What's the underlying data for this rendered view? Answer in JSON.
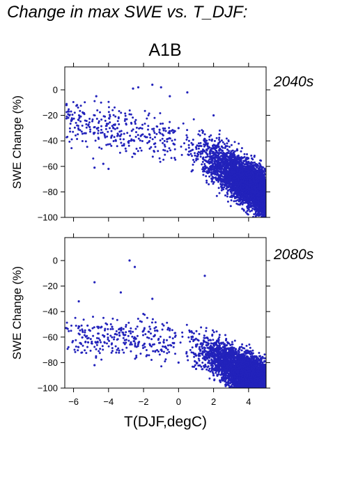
{
  "title": "Change in max SWE vs. T_DJF:",
  "scenario": "A1B",
  "colors": {
    "points": "#2222bb",
    "period_text": "#2222aa",
    "axis": "#000000"
  },
  "chart_data": [
    {
      "type": "scatter",
      "panel": "2040s",
      "period_label": "2040s",
      "ylabel": "SWE Change (%)",
      "xlabel": "",
      "xlim": [
        -6.5,
        5
      ],
      "ylim": [
        -100,
        18
      ],
      "yticks": [
        0,
        -20,
        -40,
        -60,
        -80,
        -100
      ],
      "xticks": [
        -6,
        -4,
        -2,
        0,
        2,
        4
      ],
      "xtick_labels_shown": false,
      "grid": false,
      "n_points_approx": 4000,
      "points_sample": [
        [
          -6.4,
          -12
        ],
        [
          -5.8,
          -12
        ],
        [
          -5.3,
          -34
        ],
        [
          -4.7,
          -5
        ],
        [
          -4.8,
          -61
        ],
        [
          -4.3,
          -58
        ],
        [
          -4.0,
          -62
        ],
        [
          -3.5,
          -30
        ],
        [
          -3.0,
          -48
        ],
        [
          -2.6,
          1
        ],
        [
          -2.3,
          2
        ],
        [
          -1.5,
          4
        ],
        [
          -1.0,
          2
        ],
        [
          -0.5,
          -5
        ],
        [
          0.0,
          -30
        ],
        [
          0.5,
          -2
        ],
        [
          1.0,
          -45
        ],
        [
          1.5,
          -60
        ],
        [
          2.0,
          -20
        ],
        [
          2.5,
          -70
        ],
        [
          3.0,
          -50
        ],
        [
          3.5,
          -90
        ],
        [
          4.0,
          -80
        ],
        [
          4.5,
          -95
        ],
        [
          5.0,
          -100
        ]
      ]
    },
    {
      "type": "scatter",
      "panel": "2080s",
      "period_label": "2080s",
      "ylabel": "SWE Change (%)",
      "xlabel": "T(DJF,degC)",
      "xlim": [
        -6.5,
        5
      ],
      "ylim": [
        -100,
        18
      ],
      "yticks": [
        0,
        -20,
        -40,
        -60,
        -80,
        -100
      ],
      "xticks": [
        -6,
        -4,
        -2,
        0,
        2,
        4
      ],
      "xtick_labels": [
        "−6",
        "−4",
        "−2",
        "0",
        "2",
        "4"
      ],
      "grid": false,
      "n_points_approx": 4000,
      "points_sample": [
        [
          -6.4,
          -53
        ],
        [
          -5.7,
          -32
        ],
        [
          -5.2,
          -51
        ],
        [
          -4.8,
          -17
        ],
        [
          -4.8,
          -82
        ],
        [
          -4.4,
          -52
        ],
        [
          -3.8,
          -52
        ],
        [
          -3.3,
          -25
        ],
        [
          -2.8,
          0
        ],
        [
          -2.5,
          -5
        ],
        [
          -2.0,
          -55
        ],
        [
          -1.5,
          -30
        ],
        [
          -1.0,
          -70
        ],
        [
          -0.5,
          -60
        ],
        [
          0.0,
          -80
        ],
        [
          0.5,
          -75
        ],
        [
          1.0,
          -85
        ],
        [
          1.5,
          -12
        ],
        [
          2.0,
          -90
        ],
        [
          2.5,
          -70
        ],
        [
          3.0,
          -95
        ],
        [
          3.5,
          -98
        ],
        [
          4.0,
          -100
        ],
        [
          4.5,
          -99
        ],
        [
          5.0,
          -100
        ]
      ]
    }
  ]
}
